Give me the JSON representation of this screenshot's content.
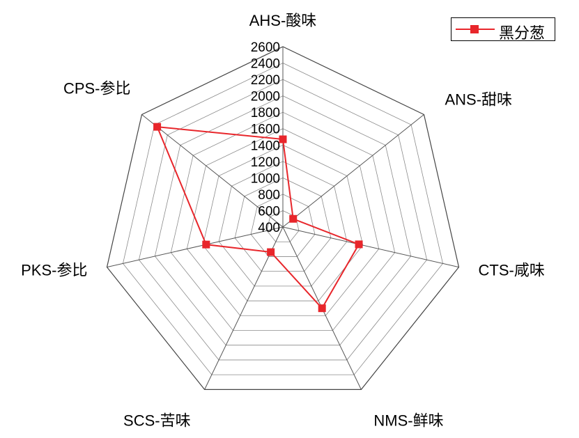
{
  "chart_data": {
    "type": "radar",
    "axes": [
      "AHS-酸味",
      "ANS-甜味",
      "CTS-咸味",
      "NMS-鲜味",
      "SCS-苦味",
      "PKS-参比",
      "CPS-参比"
    ],
    "ticks": [
      400,
      600,
      800,
      1000,
      1200,
      1400,
      1600,
      1800,
      2000,
      2200,
      2400,
      2600
    ],
    "rlim": [
      400,
      2600
    ],
    "grid": true,
    "legend_position": "top-right",
    "series": [
      {
        "name": "黑分葱",
        "color": "#e8262b",
        "values": [
          1470,
          560,
          1350,
          1500,
          740,
          1360,
          2360
        ]
      }
    ]
  }
}
